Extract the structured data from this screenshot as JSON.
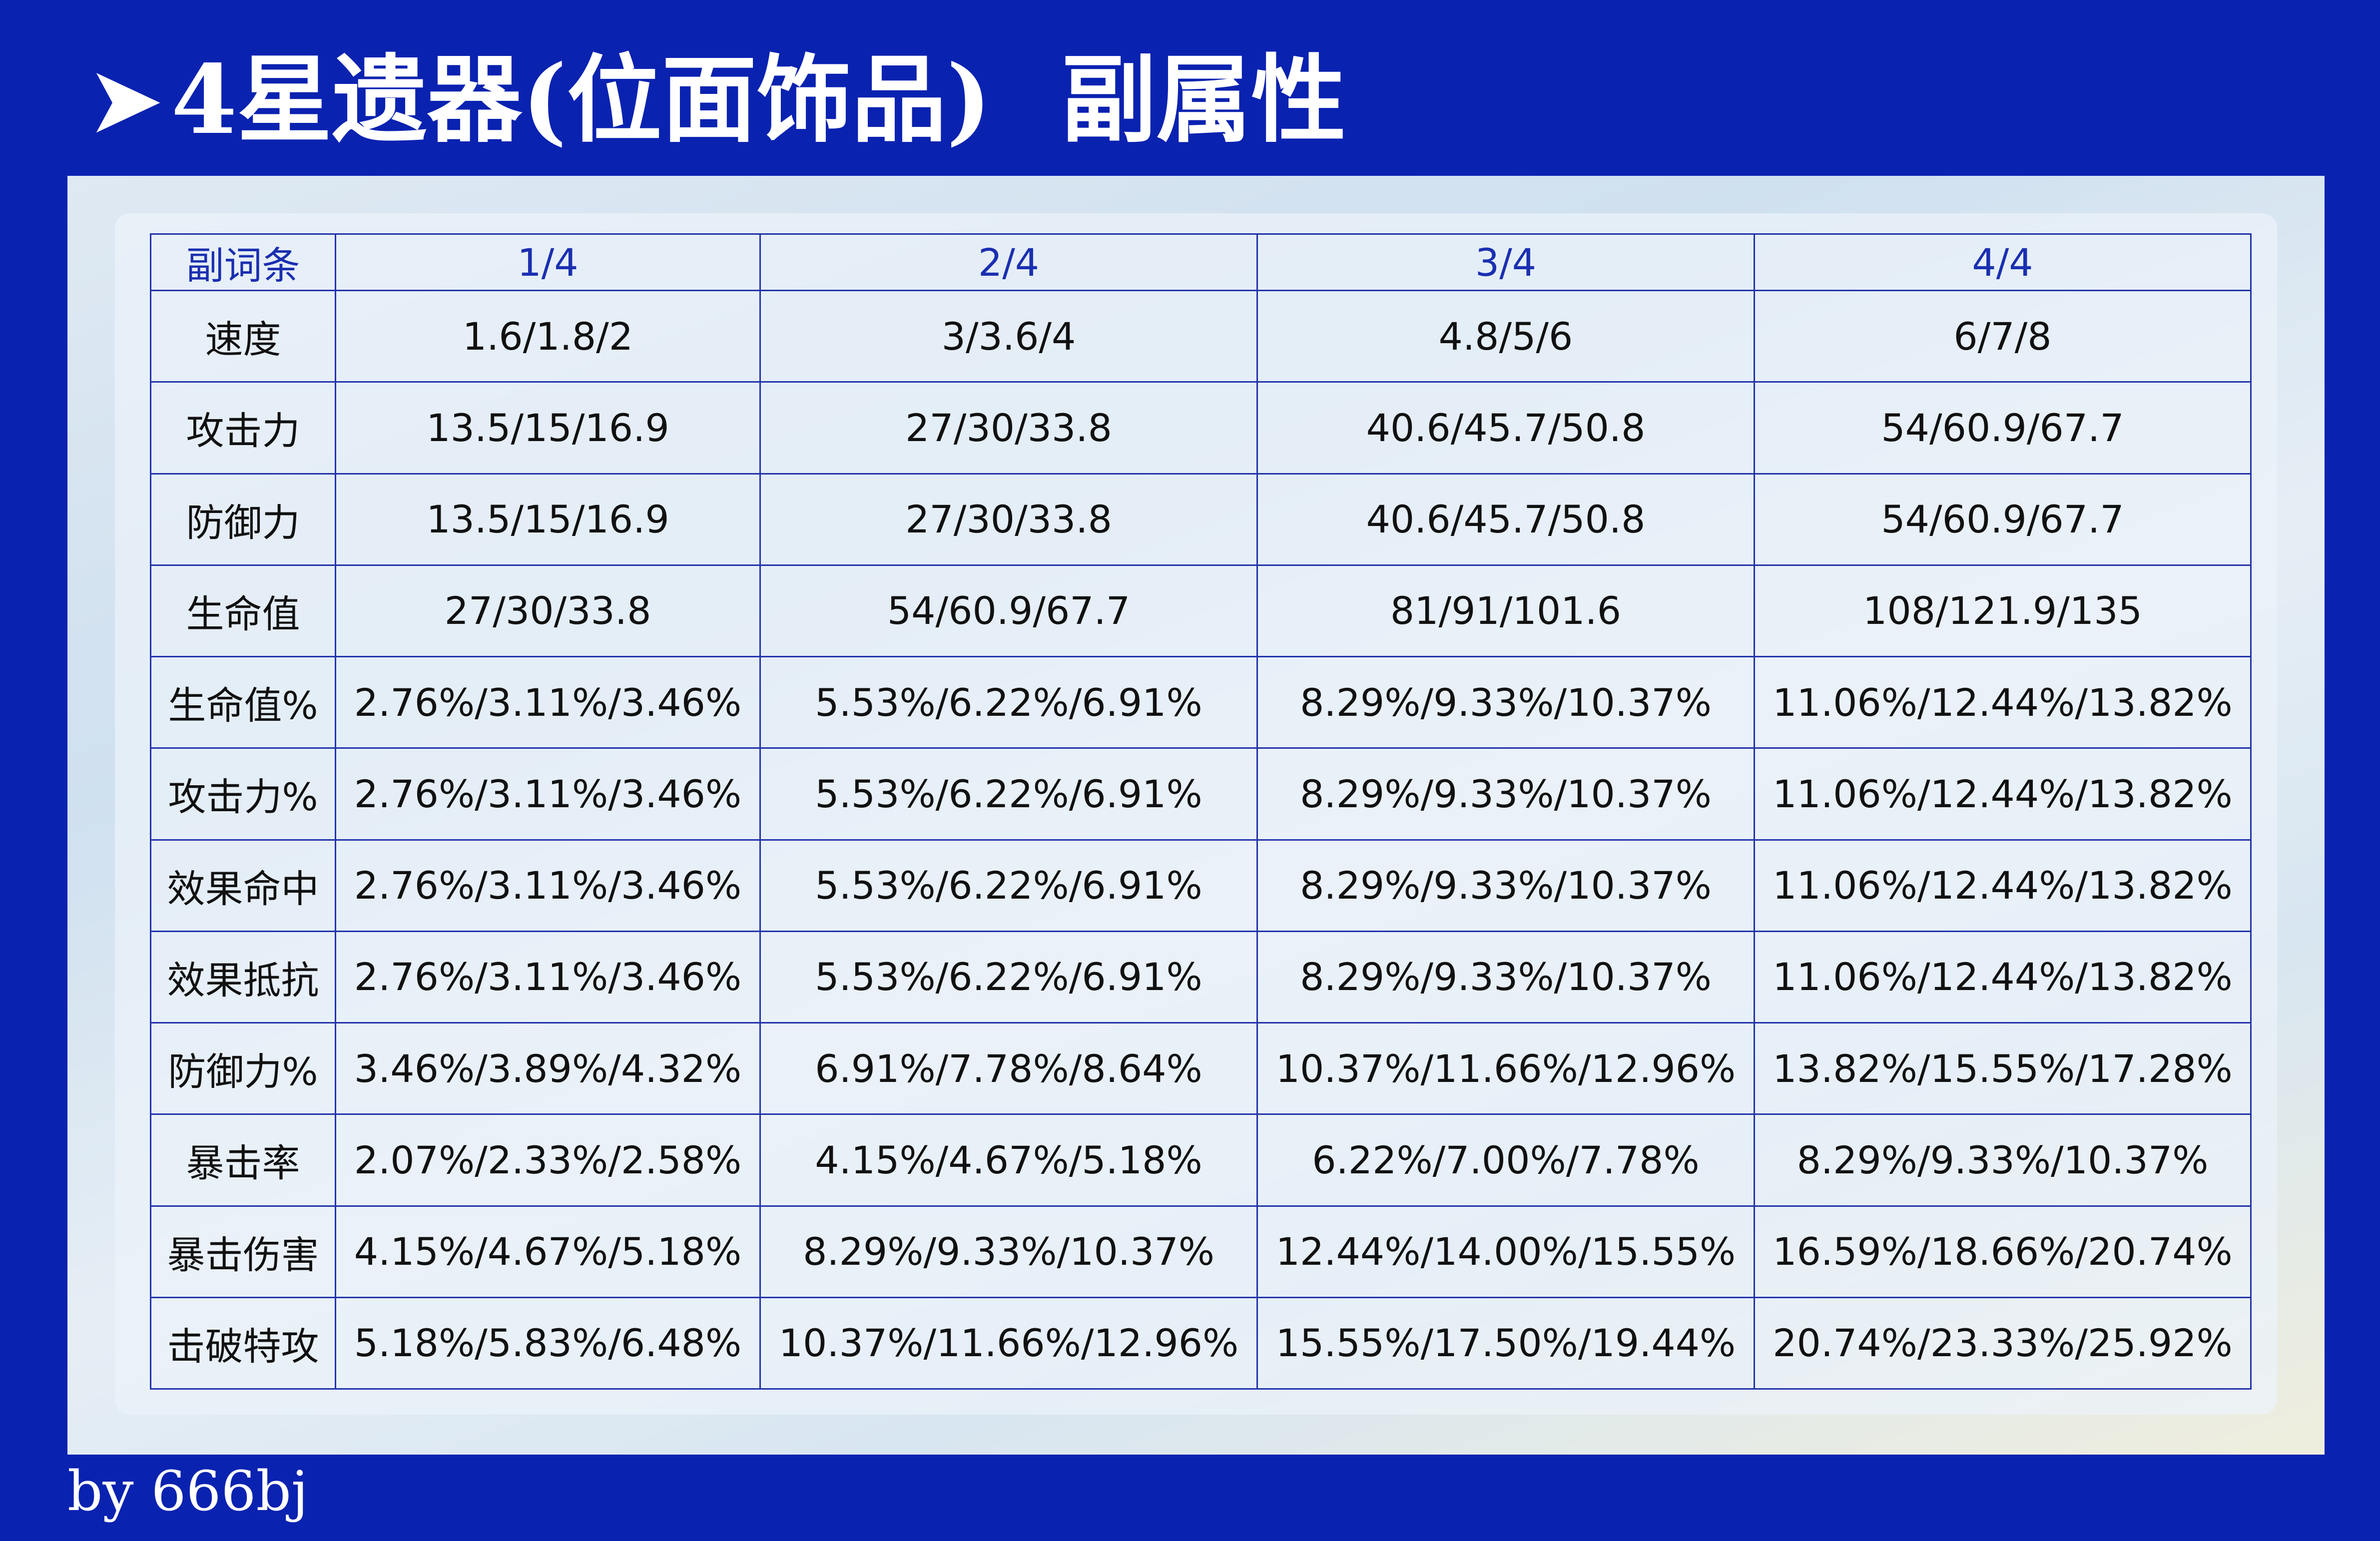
{
  "title": {
    "arrow": "➤",
    "main": "4星遗器(位面饰品)",
    "sub": "副属性"
  },
  "table": {
    "headers": [
      "副词条",
      "1/4",
      "2/4",
      "3/4",
      "4/4"
    ],
    "rows": [
      [
        "速度",
        "1.6/1.8/2",
        "3/3.6/4",
        "4.8/5/6",
        "6/7/8"
      ],
      [
        "攻击力",
        "13.5/15/16.9",
        "27/30/33.8",
        "40.6/45.7/50.8",
        "54/60.9/67.7"
      ],
      [
        "防御力",
        "13.5/15/16.9",
        "27/30/33.8",
        "40.6/45.7/50.8",
        "54/60.9/67.7"
      ],
      [
        "生命值",
        "27/30/33.8",
        "54/60.9/67.7",
        "81/91/101.6",
        "108/121.9/135"
      ],
      [
        "生命值%",
        "2.76%/3.11%/3.46%",
        "5.53%/6.22%/6.91%",
        "8.29%/9.33%/10.37%",
        "11.06%/12.44%/13.82%"
      ],
      [
        "攻击力%",
        "2.76%/3.11%/3.46%",
        "5.53%/6.22%/6.91%",
        "8.29%/9.33%/10.37%",
        "11.06%/12.44%/13.82%"
      ],
      [
        "效果命中",
        "2.76%/3.11%/3.46%",
        "5.53%/6.22%/6.91%",
        "8.29%/9.33%/10.37%",
        "11.06%/12.44%/13.82%"
      ],
      [
        "效果抵抗",
        "2.76%/3.11%/3.46%",
        "5.53%/6.22%/6.91%",
        "8.29%/9.33%/10.37%",
        "11.06%/12.44%/13.82%"
      ],
      [
        "防御力%",
        "3.46%/3.89%/4.32%",
        "6.91%/7.78%/8.64%",
        "10.37%/11.66%/12.96%",
        "13.82%/15.55%/17.28%"
      ],
      [
        "暴击率",
        "2.07%/2.33%/2.58%",
        "4.15%/4.67%/5.18%",
        "6.22%/7.00%/7.78%",
        "8.29%/9.33%/10.37%"
      ],
      [
        "暴击伤害",
        "4.15%/4.67%/5.18%",
        "8.29%/9.33%/10.37%",
        "12.44%/14.00%/15.55%",
        "16.59%/18.66%/20.74%"
      ],
      [
        "击破特攻",
        "5.18%/5.83%/6.48%",
        "10.37%/11.66%/12.96%",
        "15.55%/17.50%/19.44%",
        "20.74%/23.33%/25.92%"
      ]
    ]
  },
  "footer": "by 666bj",
  "colors": {
    "background": "#0a22b0",
    "header_text": "#1a2fb0",
    "border": "#2233aa",
    "title_text": "#ffffff"
  }
}
